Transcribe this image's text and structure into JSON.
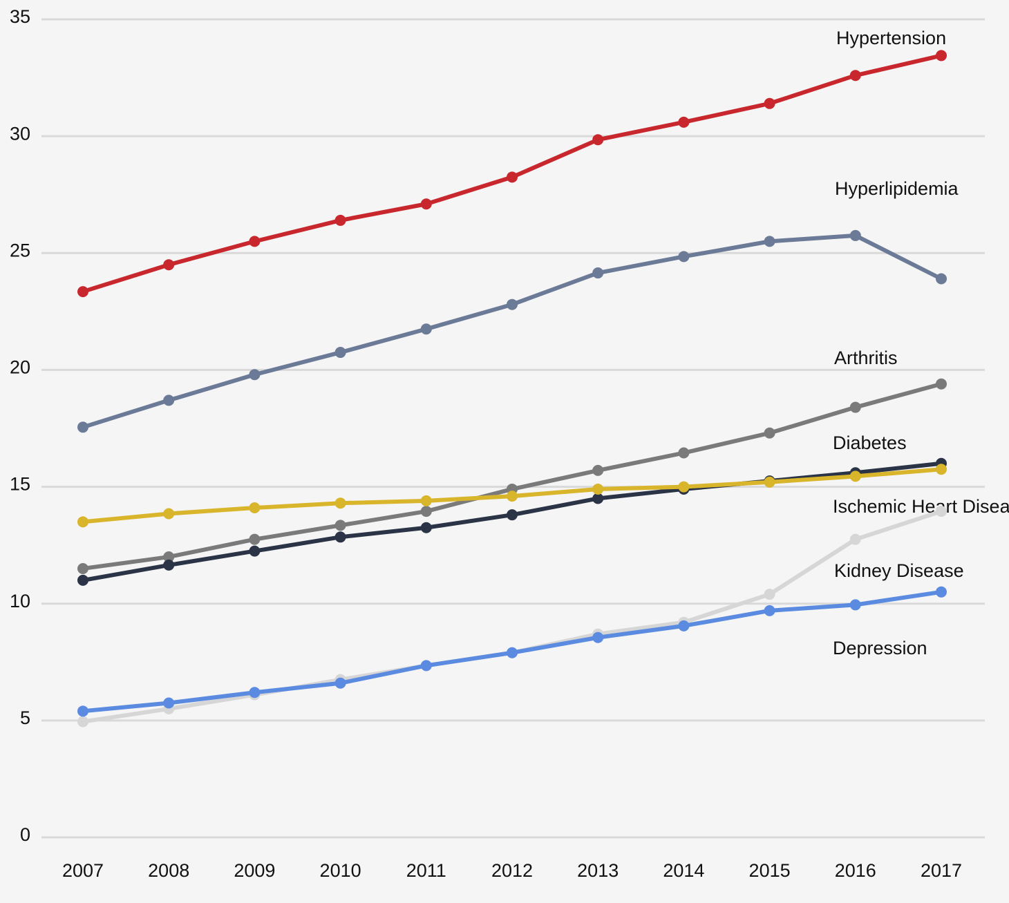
{
  "chart_data": {
    "type": "line",
    "categories": [
      "2007",
      "2008",
      "2009",
      "2010",
      "2011",
      "2012",
      "2013",
      "2014",
      "2015",
      "2016",
      "2017"
    ],
    "ylim": [
      0,
      35
    ],
    "yticks": [
      0,
      5,
      10,
      15,
      20,
      25,
      30,
      35
    ],
    "grid": true,
    "series": [
      {
        "name": "Hypertension",
        "color": "#c8282d",
        "values": [
          23.35,
          24.5,
          25.5,
          26.4,
          27.1,
          28.25,
          29.85,
          30.6,
          31.4,
          32.6,
          33.45
        ]
      },
      {
        "name": "Hyperlipidemia",
        "color": "#6b7a96",
        "values": [
          17.55,
          18.7,
          19.8,
          20.75,
          21.75,
          22.8,
          24.15,
          24.85,
          25.5,
          25.75,
          23.9
        ]
      },
      {
        "name": "Arthritis",
        "color": "#7a7a7a",
        "values": [
          11.5,
          12.0,
          12.75,
          13.35,
          13.95,
          14.9,
          15.7,
          16.45,
          17.3,
          18.4,
          19.4
        ]
      },
      {
        "name": "Diabetes",
        "color": "#2b3446",
        "values": [
          11.0,
          11.65,
          12.25,
          12.85,
          13.25,
          13.8,
          14.5,
          14.9,
          15.25,
          15.6,
          16.0
        ]
      },
      {
        "name": "Ischemic Heart Disease",
        "color": "#d9b52c",
        "values": [
          13.5,
          13.85,
          14.1,
          14.3,
          14.4,
          14.6,
          14.9,
          15.0,
          15.2,
          15.45,
          15.75
        ]
      },
      {
        "name": "Kidney Disease",
        "color": "#d6d6d6",
        "values": [
          4.95,
          5.5,
          6.1,
          6.75,
          7.35,
          7.9,
          8.7,
          9.2,
          10.4,
          12.75,
          13.95
        ]
      },
      {
        "name": "Depression",
        "color": "#5b8be0",
        "values": [
          5.4,
          5.75,
          6.2,
          6.6,
          7.35,
          7.9,
          8.55,
          9.05,
          9.7,
          9.95,
          10.5
        ]
      }
    ]
  }
}
